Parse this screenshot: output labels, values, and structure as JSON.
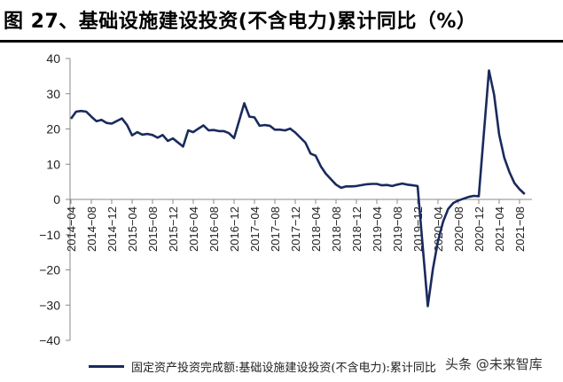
{
  "title": "图 27、基础设施建设投资(不含电力)累计同比（%）",
  "legend": {
    "label": "固定资产投资完成额:基础设施建设投资(不含电力):累计同比"
  },
  "watermark": "头条 @未来智库",
  "colors": {
    "line": "#1a2a5c",
    "axis": "#888888"
  },
  "chart_data": {
    "type": "line",
    "title": "图 27、基础设施建设投资(不含电力)累计同比（%）",
    "xlabel": "",
    "ylabel": "%",
    "ylim": [
      -40,
      40
    ],
    "yticks": [
      40,
      30,
      20,
      10,
      0,
      -10,
      -20,
      -30,
      -40
    ],
    "xtick_labels": [
      "2014-04",
      "2014-08",
      "2014-12",
      "2015-04",
      "2015-08",
      "2015-12",
      "2016-04",
      "2016-08",
      "2016-12",
      "2017-04",
      "2017-08",
      "2017-12",
      "2018-04",
      "2018-08",
      "2018-12",
      "2019-04",
      "2019-08",
      "2019-12",
      "2020-04",
      "2020-08",
      "2020-12",
      "2021-04",
      "2021-08"
    ],
    "grid": false,
    "legend_position": "bottom",
    "series": [
      {
        "name": "固定资产投资完成额:基础设施建设投资(不含电力):累计同比",
        "x": [
          "2014-04",
          "2014-05",
          "2014-06",
          "2014-07",
          "2014-08",
          "2014-09",
          "2014-10",
          "2014-11",
          "2014-12",
          "2015-02",
          "2015-03",
          "2015-04",
          "2015-05",
          "2015-06",
          "2015-07",
          "2015-08",
          "2015-09",
          "2015-10",
          "2015-11",
          "2015-12",
          "2016-02",
          "2016-03",
          "2016-04",
          "2016-05",
          "2016-06",
          "2016-07",
          "2016-08",
          "2016-09",
          "2016-10",
          "2016-11",
          "2016-12",
          "2017-02",
          "2017-03",
          "2017-04",
          "2017-05",
          "2017-06",
          "2017-07",
          "2017-08",
          "2017-09",
          "2017-10",
          "2017-11",
          "2017-12",
          "2018-02",
          "2018-03",
          "2018-04",
          "2018-05",
          "2018-06",
          "2018-07",
          "2018-08",
          "2018-09",
          "2018-10",
          "2018-11",
          "2018-12",
          "2019-02",
          "2019-03",
          "2019-04",
          "2019-05",
          "2019-06",
          "2019-07",
          "2019-08",
          "2019-09",
          "2019-10",
          "2019-11",
          "2019-12",
          "2020-02",
          "2020-03",
          "2020-04",
          "2020-05",
          "2020-06",
          "2020-07",
          "2020-08",
          "2020-09",
          "2020-10",
          "2020-11",
          "2020-12",
          "2021-02",
          "2021-03",
          "2021-04",
          "2021-05",
          "2021-06",
          "2021-07",
          "2021-08",
          "2021-09"
        ],
        "values": [
          22.9,
          24.9,
          25.1,
          24.9,
          23.5,
          22.2,
          22.6,
          21.7,
          21.5,
          23.0,
          21.1,
          18.2,
          19.1,
          18.4,
          18.6,
          18.3,
          17.5,
          18.3,
          16.6,
          17.3,
          15.0,
          19.6,
          19.1,
          20.1,
          21.0,
          19.6,
          19.7,
          19.4,
          19.4,
          18.8,
          17.4,
          27.3,
          23.5,
          23.3,
          20.9,
          21.1,
          20.9,
          19.8,
          19.8,
          19.6,
          20.1,
          19.0,
          16.1,
          13.0,
          12.4,
          9.4,
          7.3,
          5.7,
          4.2,
          3.3,
          3.7,
          3.7,
          3.8,
          4.3,
          4.4,
          4.4,
          4.0,
          4.1,
          3.8,
          4.2,
          4.5,
          4.2,
          4.0,
          3.8,
          -30.3,
          -19.7,
          -11.8,
          -6.3,
          -2.7,
          -1.0,
          -0.3,
          0.2,
          0.7,
          1.0,
          0.9,
          36.6,
          29.7,
          18.4,
          11.8,
          7.8,
          4.6,
          2.9,
          1.5
        ]
      }
    ]
  }
}
